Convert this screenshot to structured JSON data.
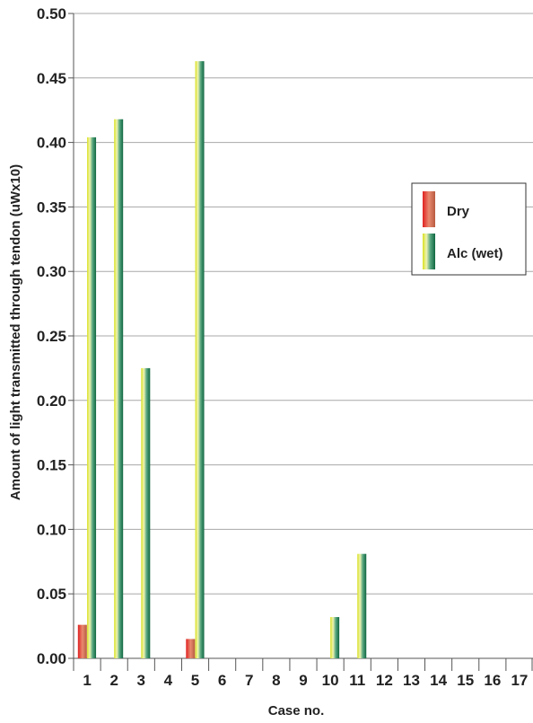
{
  "chart_data": {
    "type": "bar",
    "xlabel": "Case no.",
    "ylabel": "Amount of light transmitted through tendon (uWx10)",
    "ylim": [
      0,
      0.5
    ],
    "yticks": [
      "0.00",
      "0.05",
      "0.10",
      "0.15",
      "0.20",
      "0.25",
      "0.30",
      "0.35",
      "0.40",
      "0.45",
      "0.50"
    ],
    "categories": [
      "1",
      "2",
      "3",
      "4",
      "5",
      "6",
      "7",
      "8",
      "9",
      "10",
      "11",
      "12",
      "13",
      "14",
      "15",
      "16",
      "17"
    ],
    "series": [
      {
        "name": "Dry",
        "color": "#c0392b",
        "values": [
          0.026,
          0,
          0,
          0,
          0.015,
          0,
          0,
          0,
          0,
          0,
          0,
          0,
          0,
          0,
          0,
          0,
          0
        ]
      },
      {
        "name": "Alc (wet)",
        "color": "#1e7a4e",
        "values": [
          0.404,
          0.418,
          0.225,
          0,
          0.463,
          0,
          0,
          0,
          0,
          0.032,
          0.081,
          0,
          0,
          0,
          0,
          0,
          0
        ]
      }
    ],
    "grid": true,
    "legend_position": "right"
  }
}
